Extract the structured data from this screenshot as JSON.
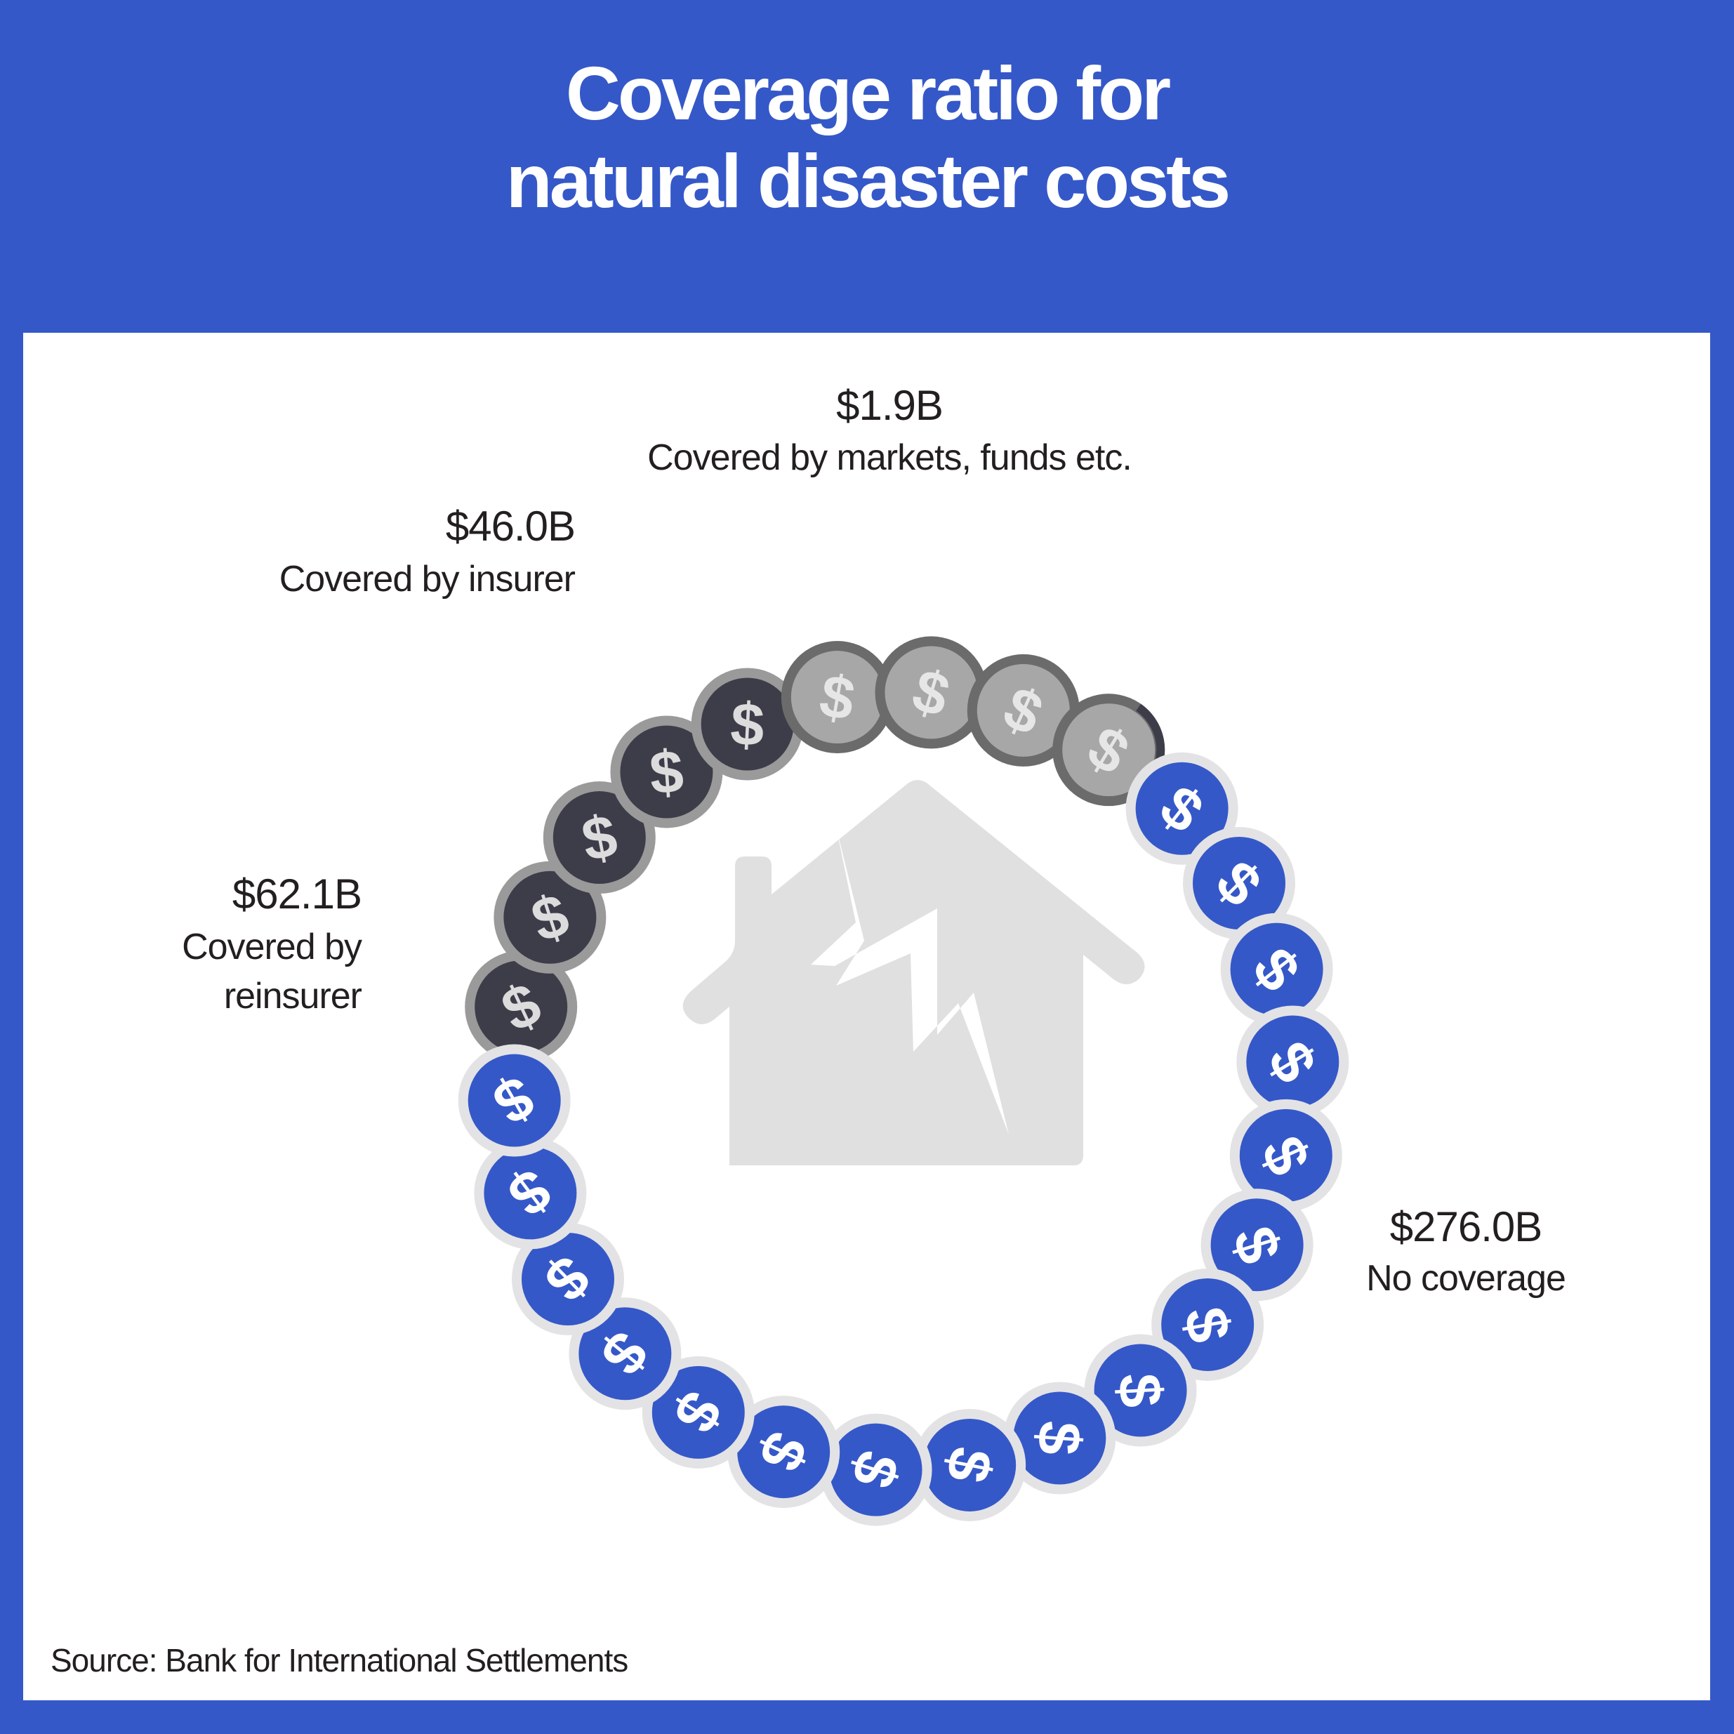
{
  "title_line1": "Coverage ratio for",
  "title_line2": "natural disaster costs",
  "source": "Source: Bank for International Settlements",
  "colors": {
    "background": "#3558c8",
    "panel": "#ffffff",
    "no_coverage": "#3558c8",
    "reinsurer": "#3d3d4a",
    "insurer": "#a7a7a7",
    "markets": "#a7a7a7",
    "house": "#e0e0e0",
    "text": "#231f20"
  },
  "icons": {
    "center": "damaged-house-icon",
    "coin": "dollar-coin-icon"
  },
  "chart_data": {
    "type": "pictogram",
    "unit": "$B",
    "coin_count": 26,
    "categories": [
      {
        "label": "Covered by reinsurer",
        "value": 62.1,
        "display": "$62.1B",
        "coins": 5,
        "color": "#3d3d4a"
      },
      {
        "label": "Covered by insurer",
        "value": 46.0,
        "display": "$46.0B",
        "coins": 3,
        "color": "#a7a7a7"
      },
      {
        "label": "Covered by markets, funds etc.",
        "value": 1.9,
        "display": "$1.9B",
        "coins": 0.3,
        "color": "#a7a7a7"
      },
      {
        "label": "No coverage",
        "value": 276.0,
        "display": "$276.0B",
        "coins": 17.7,
        "color": "#3558c8"
      }
    ]
  }
}
